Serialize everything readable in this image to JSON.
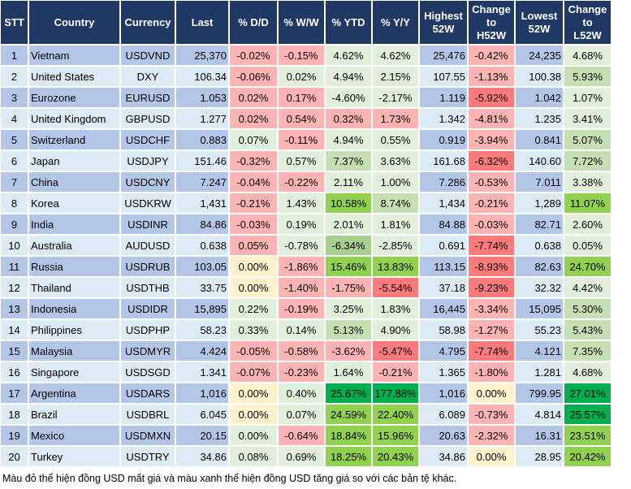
{
  "headers": [
    "STT",
    "Country",
    "Currency",
    "Last",
    "% D/D",
    "% W/W",
    "% YTD",
    "% Y/Y",
    "Highest\n52W",
    "Change\nto\nH52W",
    "Lowest\n52W",
    "Change\nto\nL52W"
  ],
  "colors": {
    "header_bg": "#203864",
    "row_odd": "#b4c6e7",
    "row_even": "#ddebf7",
    "r1": "#ffb3b3",
    "r2": "#ff7a7a",
    "g1": "#e2efda",
    "g2": "#c6e0b4",
    "g2b": "#a9d08e",
    "g3": "#92d050",
    "g4": "#00b050",
    "y": "#fff2cc"
  },
  "rows": [
    {
      "stt": "1",
      "country": "Vietnam",
      "currency": "USDVND",
      "last": "25,370",
      "dd": "-0.02%",
      "ww": "-0.15%",
      "ytd": "4.62%",
      "yy": "4.62%",
      "high": "25,476",
      "ch": "-0.42%",
      "low": "24,235",
      "cl": "4.68%",
      "heat": [
        "r1",
        "r1",
        "g1",
        "g1",
        "r1",
        "g1"
      ]
    },
    {
      "stt": "2",
      "country": "United States",
      "currency": "DXY",
      "last": "106.34",
      "dd": "-0.06%",
      "ww": "0.02%",
      "ytd": "4.94%",
      "yy": "2.15%",
      "high": "107.55",
      "ch": "-1.13%",
      "low": "100.38",
      "cl": "5.93%",
      "heat": [
        "r1",
        "g1",
        "g1",
        "g1",
        "r1",
        "g2"
      ]
    },
    {
      "stt": "3",
      "country": "Eurozone",
      "currency": "EURUSD",
      "last": "1.053",
      "dd": "0.02%",
      "ww": "0.17%",
      "ytd": "-4.60%",
      "yy": "-2.17%",
      "high": "1.119",
      "ch": "-5.92%",
      "low": "1.042",
      "cl": "1.07%",
      "heat": [
        "r1",
        "r1",
        "g1",
        "g1",
        "r2",
        "g1"
      ]
    },
    {
      "stt": "4",
      "country": "United Kingdom",
      "currency": "GBPUSD",
      "last": "1.277",
      "dd": "0.02%",
      "ww": "0.54%",
      "ytd": "0.32%",
      "yy": "1.73%",
      "high": "1.342",
      "ch": "-4.81%",
      "low": "1.235",
      "cl": "3.41%",
      "heat": [
        "r1",
        "r1",
        "r1",
        "r1",
        "r1",
        "g1"
      ]
    },
    {
      "stt": "5",
      "country": "Switzerland",
      "currency": "USDCHF",
      "last": "0.883",
      "dd": "0.07%",
      "ww": "-0.11%",
      "ytd": "4.94%",
      "yy": "0.55%",
      "high": "0.919",
      "ch": "-3.94%",
      "low": "0.841",
      "cl": "5.07%",
      "heat": [
        "g1",
        "r1",
        "g1",
        "g1",
        "r1",
        "g2"
      ]
    },
    {
      "stt": "6",
      "country": "Japan",
      "currency": "USDJPY",
      "last": "151.46",
      "dd": "-0.32%",
      "ww": "0.57%",
      "ytd": "7.37%",
      "yy": "3.63%",
      "high": "161.68",
      "ch": "-6.32%",
      "low": "140.60",
      "cl": "7.72%",
      "heat": [
        "r1",
        "g1",
        "g2",
        "g1",
        "r2",
        "g2"
      ]
    },
    {
      "stt": "7",
      "country": "China",
      "currency": "USDCNY",
      "last": "7.247",
      "dd": "-0.04%",
      "ww": "-0.22%",
      "ytd": "2.11%",
      "yy": "1.00%",
      "high": "7.286",
      "ch": "-0.53%",
      "low": "7.011",
      "cl": "3.38%",
      "heat": [
        "r1",
        "r1",
        "g1",
        "g1",
        "r1",
        "g1"
      ]
    },
    {
      "stt": "8",
      "country": "Korea",
      "currency": "USDKRW",
      "last": "1,431",
      "dd": "-0.21%",
      "ww": "1.43%",
      "ytd": "10.58%",
      "yy": "8.74%",
      "high": "1,434",
      "ch": "-0.21%",
      "low": "1,289",
      "cl": "11.07%",
      "heat": [
        "r1",
        "g1",
        "g3",
        "g2",
        "r1",
        "g3"
      ]
    },
    {
      "stt": "9",
      "country": "India",
      "currency": "USDINR",
      "last": "84.86",
      "dd": "-0.03%",
      "ww": "0.19%",
      "ytd": "2.01%",
      "yy": "1.81%",
      "high": "84.88",
      "ch": "-0.03%",
      "low": "82.71",
      "cl": "2.60%",
      "heat": [
        "r1",
        "g1",
        "g1",
        "g1",
        "r1",
        "g1"
      ]
    },
    {
      "stt": "10",
      "country": "Australia",
      "currency": "AUDUSD",
      "last": "0.638",
      "dd": "0.05%",
      "ww": "-0.78%",
      "ytd": "-6.34%",
      "yy": "-2.85%",
      "high": "0.691",
      "ch": "-7.74%",
      "low": "0.638",
      "cl": "0.05%",
      "heat": [
        "r1",
        "g1",
        "g2b",
        "g1",
        "r2",
        "g1"
      ]
    },
    {
      "stt": "11",
      "country": "Russia",
      "currency": "USDRUB",
      "last": "103.05",
      "dd": "0.00%",
      "ww": "-1.86%",
      "ytd": "15.46%",
      "yy": "13.83%",
      "high": "113.15",
      "ch": "-8.93%",
      "low": "82.63",
      "cl": "24.70%",
      "heat": [
        "y",
        "r1",
        "g3",
        "g3",
        "r2",
        "g3"
      ]
    },
    {
      "stt": "12",
      "country": "Thailand",
      "currency": "USDTHB",
      "last": "33.75",
      "dd": "0.00%",
      "ww": "-1.40%",
      "ytd": "-1.75%",
      "yy": "-5.54%",
      "high": "37.18",
      "ch": "-9.23%",
      "low": "32.32",
      "cl": "4.42%",
      "heat": [
        "y",
        "r1",
        "r1",
        "r2",
        "r2",
        "g1"
      ]
    },
    {
      "stt": "13",
      "country": "Indonesia",
      "currency": "USDIDR",
      "last": "15,895",
      "dd": "0.22%",
      "ww": "-0.19%",
      "ytd": "3.25%",
      "yy": "1.83%",
      "high": "16,445",
      "ch": "-3.34%",
      "low": "15,095",
      "cl": "5.30%",
      "heat": [
        "g1",
        "r1",
        "g1",
        "g1",
        "r1",
        "g2"
      ]
    },
    {
      "stt": "14",
      "country": "Philippines",
      "currency": "USDPHP",
      "last": "58.23",
      "dd": "0.33%",
      "ww": "0.14%",
      "ytd": "5.13%",
      "yy": "4.90%",
      "high": "58.98",
      "ch": "-1.27%",
      "low": "55.23",
      "cl": "5.43%",
      "heat": [
        "g1",
        "g1",
        "g2",
        "g1",
        "r1",
        "g2"
      ]
    },
    {
      "stt": "15",
      "country": "Malaysia",
      "currency": "USDMYR",
      "last": "4.424",
      "dd": "-0.05%",
      "ww": "-0.58%",
      "ytd": "-3.62%",
      "yy": "-5.47%",
      "high": "4.795",
      "ch": "-7.74%",
      "low": "4.121",
      "cl": "7.35%",
      "heat": [
        "r1",
        "r1",
        "r1",
        "r2",
        "r2",
        "g2"
      ]
    },
    {
      "stt": "16",
      "country": "Singapore",
      "currency": "USDSGD",
      "last": "1.341",
      "dd": "-0.07%",
      "ww": "-0.23%",
      "ytd": "1.64%",
      "yy": "-0.21%",
      "high": "1.365",
      "ch": "-1.80%",
      "low": "1.281",
      "cl": "4.68%",
      "heat": [
        "r1",
        "r1",
        "g1",
        "r1",
        "r1",
        "g1"
      ]
    },
    {
      "stt": "17",
      "country": "Argentina",
      "currency": "USDARS",
      "last": "1,016",
      "dd": "0.00%",
      "ww": "0.40%",
      "ytd": "25.67%",
      "yy": "177.88%",
      "high": "1,016",
      "ch": "0.00%",
      "low": "799.95",
      "cl": "27.01%",
      "heat": [
        "y",
        "g1",
        "g4",
        "g4",
        "y",
        "g4"
      ]
    },
    {
      "stt": "18",
      "country": "Brazil",
      "currency": "USDBRL",
      "last": "6.045",
      "dd": "0.00%",
      "ww": "0.07%",
      "ytd": "24.59%",
      "yy": "22.40%",
      "high": "6.089",
      "ch": "-0.73%",
      "low": "4.814",
      "cl": "25.57%",
      "heat": [
        "y",
        "g1",
        "g3",
        "g3",
        "r1",
        "g4"
      ]
    },
    {
      "stt": "19",
      "country": "Mexico",
      "currency": "USDMXN",
      "last": "20.15",
      "dd": "0.00%",
      "ww": "-0.64%",
      "ytd": "18.84%",
      "yy": "15.96%",
      "high": "20.63",
      "ch": "-2.32%",
      "low": "16.31",
      "cl": "23.51%",
      "heat": [
        "g1",
        "r1",
        "g3",
        "g3",
        "r1",
        "g3"
      ]
    },
    {
      "stt": "20",
      "country": "Turkey",
      "currency": "USDTRY",
      "last": "34.86",
      "dd": "0.08%",
      "ww": "0.69%",
      "ytd": "18.25%",
      "yy": "20.43%",
      "high": "34.86",
      "ch": "0.00%",
      "low": "28.95",
      "cl": "20.42%",
      "heat": [
        "g1",
        "g1",
        "g3",
        "g3",
        "y",
        "g3"
      ]
    }
  ],
  "footnote": "Màu đỏ thể hiện đồng USD mất giá và màu xanh thể hiện đồng USD tăng giá so với các bản tệ khác."
}
